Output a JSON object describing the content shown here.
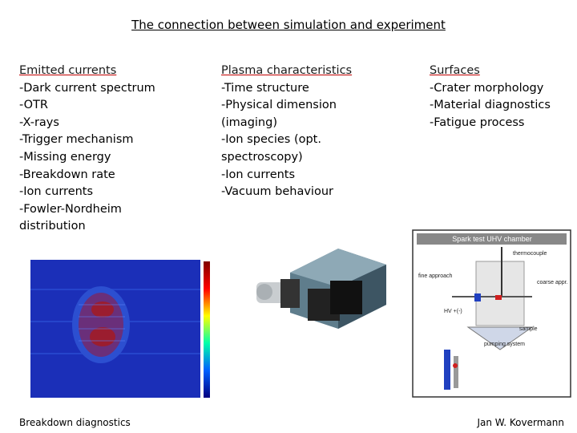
{
  "title": "The connection between simulation and experiment",
  "columns": [
    {
      "heading": "Emitted currents",
      "items": [
        "-Dark current spectrum",
        "-OTR",
        "-X-rays",
        "-Trigger mechanism",
        "-Missing energy",
        "-Breakdown rate",
        "-Ion currents",
        "-Fowler-Nordheim distribution"
      ]
    },
    {
      "heading": "Plasma characteristics",
      "items": [
        "-Time structure",
        "-Physical dimension (imaging)",
        "-Ion species (opt. spectroscopy)",
        "-Ion currents",
        "-Vacuum behaviour"
      ]
    },
    {
      "heading": "Surfaces",
      "items": [
        "-Crater morphology",
        "-Material diagnostics",
        "-Fatigue process"
      ]
    }
  ],
  "captions": {
    "left": "Breakdown diagnostics",
    "right": "Jan W. Kovermann"
  },
  "diagram": {
    "title": "Spark test UHV chamber",
    "labels": [
      "thermocouple",
      "fine approach",
      "coarse appr.",
      "HV +(-)",
      "sample",
      "pumping system"
    ]
  }
}
